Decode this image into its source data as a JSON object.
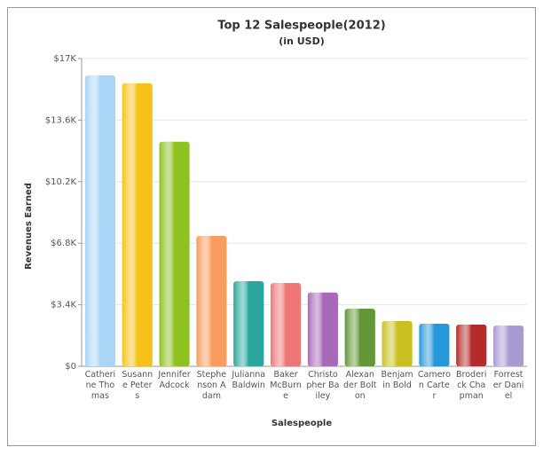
{
  "chart_data": {
    "type": "bar",
    "title": "Top 12 Salespeople(2012)",
    "subtitle": "(in USD)",
    "x_label": "Salespeople",
    "y_label": "Revenues Earned",
    "categories": [
      "Catherine Thomas",
      "Susanne Peters",
      "Jennifer Adcock",
      "Stephenson Adam",
      "Julianna Baldwin",
      "Baker McBurne",
      "Christopher Bailey",
      "Alexander Bolton",
      "Benjamin Bold",
      "Cameron Carter",
      "Broderick Chapman",
      "Forrester Daniel"
    ],
    "values": [
      16070,
      15630,
      12400,
      7200,
      4700,
      4600,
      4070,
      3180,
      2500,
      2350,
      2300,
      2250
    ],
    "colors": [
      "#a9d5f6",
      "#f6c21a",
      "#8dc220",
      "#f99c5f",
      "#2ba69e",
      "#ef7676",
      "#a86ab8",
      "#629738",
      "#c8c020",
      "#2698d9",
      "#b32b2b",
      "#aa9ad2"
    ],
    "ylim": [
      0,
      17000
    ],
    "yticks": [
      {
        "value": 0,
        "label": "$0"
      },
      {
        "value": 3400,
        "label": "$3.4K"
      },
      {
        "value": 6800,
        "label": "$6.8K"
      },
      {
        "value": 10200,
        "label": "$10.2K"
      },
      {
        "value": 13600,
        "label": "$13.6K"
      },
      {
        "value": 17000,
        "label": "$17K"
      }
    ],
    "grid": true
  }
}
